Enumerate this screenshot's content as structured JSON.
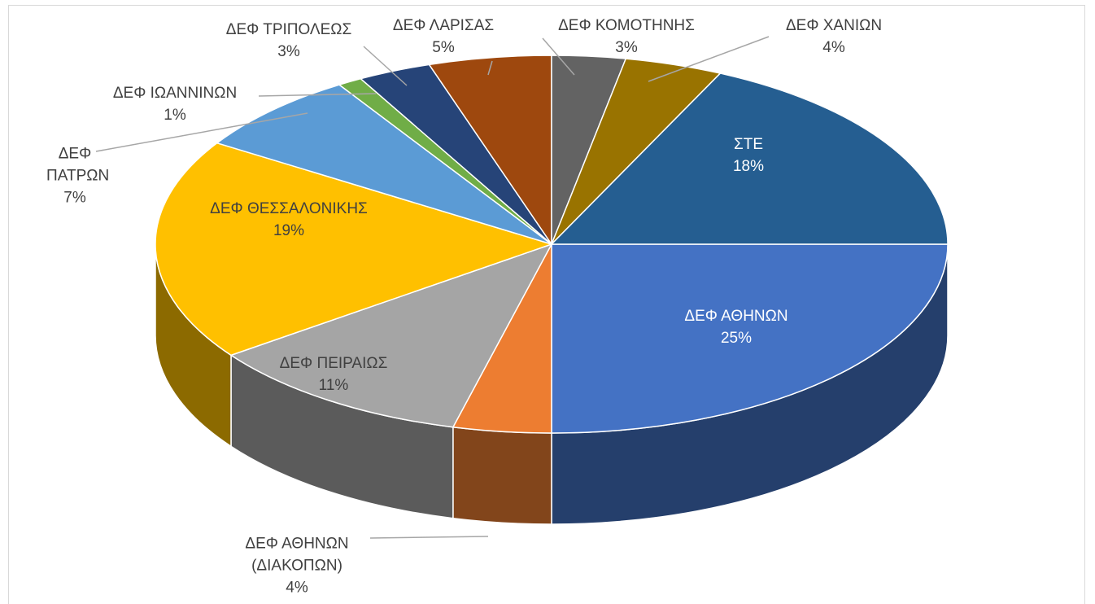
{
  "chart_data": {
    "type": "pie",
    "categories": [
      "ΔΕΦ ΑΘΗΝΩΝ",
      "ΔΕΦ ΑΘΗΝΩΝ (ΔΙΑΚΟΠΩΝ)",
      "ΔΕΦ ΠΕΙΡΑΙΩΣ",
      "ΔΕΦ ΘΕΣΣΑΛΟΝΙΚΗΣ",
      "ΔΕΦ ΠΑΤΡΩΝ",
      "ΔΕΦ ΙΩΑΝΝΙΝΩΝ",
      "ΔΕΦ ΤΡΙΠΟΛΕΩΣ",
      "ΔΕΦ ΛΑΡΙΣΑΣ",
      "ΔΕΦ ΚΟΜΟΤΗΝΗΣ",
      "ΔΕΦ ΧΑΝΙΩΝ",
      "ΣΤΕ"
    ],
    "values": [
      25,
      4,
      11,
      19,
      7,
      1,
      3,
      5,
      3,
      4,
      18
    ],
    "value_labels": [
      "25%",
      "4%",
      "11%",
      "19%",
      "7%",
      "1%",
      "3%",
      "5%",
      "3%",
      "4%",
      "18%"
    ],
    "colors": [
      "#4472c4",
      "#ed7d31",
      "#a5a5a5",
      "#ffc000",
      "#5b9bd5",
      "#70ad47",
      "#264478",
      "#9e480e",
      "#636363",
      "#997300",
      "#255e91"
    ]
  }
}
